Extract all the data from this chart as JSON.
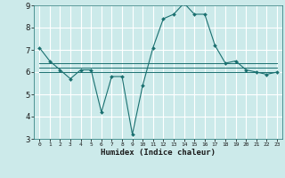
{
  "xlabel": "Humidex (Indice chaleur)",
  "bg_color": "#cceaea",
  "grid_color": "#ffffff",
  "line_color": "#1a7070",
  "xlim": [
    -0.5,
    23.5
  ],
  "ylim": [
    3,
    9
  ],
  "xticks": [
    0,
    1,
    2,
    3,
    4,
    5,
    6,
    7,
    8,
    9,
    10,
    11,
    12,
    13,
    14,
    15,
    16,
    17,
    18,
    19,
    20,
    21,
    22,
    23
  ],
  "yticks": [
    3,
    4,
    5,
    6,
    7,
    8,
    9
  ],
  "series": [
    {
      "x": [
        0,
        1,
        2,
        3,
        4,
        5,
        6,
        7,
        8,
        9,
        10,
        11,
        12,
        13,
        14,
        15,
        16,
        17,
        18,
        19,
        20,
        21,
        22,
        23
      ],
      "y": [
        7.1,
        6.5,
        6.1,
        5.7,
        6.1,
        6.1,
        4.2,
        5.8,
        5.8,
        3.2,
        5.4,
        7.1,
        8.4,
        8.6,
        9.1,
        8.6,
        8.6,
        7.2,
        6.4,
        6.5,
        6.1,
        6.0,
        5.9,
        6.0
      ],
      "markers": true
    },
    {
      "x": [
        0,
        23
      ],
      "y": [
        6.2,
        6.2
      ],
      "markers": false
    },
    {
      "x": [
        0,
        23
      ],
      "y": [
        6.0,
        6.0
      ],
      "markers": false
    },
    {
      "x": [
        0,
        23
      ],
      "y": [
        6.4,
        6.4
      ],
      "markers": false
    }
  ]
}
